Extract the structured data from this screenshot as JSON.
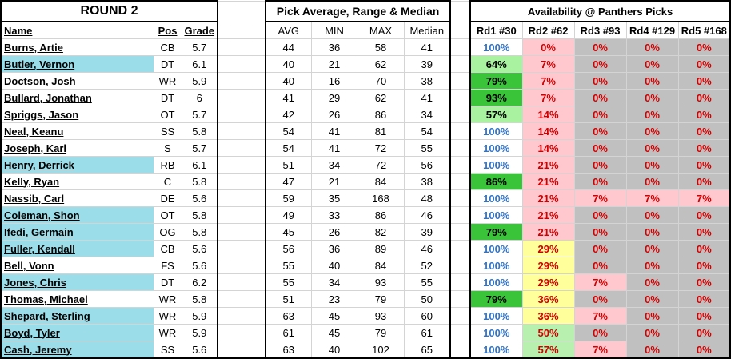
{
  "headers": {
    "section1_title": "ROUND 2",
    "section2_title": "Pick Average, Range & Median",
    "section3_title": "Availability @ Panthers Picks",
    "name": "Name",
    "pos": "Pos",
    "grade": "Grade",
    "avg": "AVG",
    "min": "MIN",
    "max": "MAX",
    "median": "Median",
    "rd1": "Rd1 #30",
    "rd2": "Rd2 #62",
    "rd3": "Rd3 #93",
    "rd4": "Rd4 #129",
    "rd5": "Rd5 #168"
  },
  "colors": {
    "highlight_name": "#9bdde9",
    "pct_100": "#2f74c9",
    "pct_red": "#d00000",
    "dark_green": "#3ac43a",
    "light_green": "#a8f2a0",
    "pink": "#ffc7ce",
    "gray": "#c0c0c0",
    "yellow": "#ffff9c"
  },
  "players": [
    {
      "name": "Burns, Artie",
      "pos": "CB",
      "grade": "5.7",
      "avg": "44",
      "min": "36",
      "max": "58",
      "median": "41",
      "rd1": "100%",
      "rd2": "0%",
      "rd3": "0%",
      "rd4": "0%",
      "rd5": "0%",
      "hl": false,
      "rd1bg": "",
      "rd2bg": "pk",
      "rd3bg": "gy",
      "rd4bg": "gy",
      "rd5bg": "gy"
    },
    {
      "name": "Butler, Vernon",
      "pos": "DT",
      "grade": "6.1",
      "avg": "40",
      "min": "21",
      "max": "62",
      "median": "39",
      "rd1": "64%",
      "rd2": "7%",
      "rd3": "0%",
      "rd4": "0%",
      "rd5": "0%",
      "hl": true,
      "rd1bg": "lg",
      "rd2bg": "pk",
      "rd3bg": "gy",
      "rd4bg": "gy",
      "rd5bg": "gy"
    },
    {
      "name": "Doctson, Josh",
      "pos": "WR",
      "grade": "5.9",
      "avg": "40",
      "min": "16",
      "max": "70",
      "median": "38",
      "rd1": "79%",
      "rd2": "7%",
      "rd3": "0%",
      "rd4": "0%",
      "rd5": "0%",
      "hl": false,
      "rd1bg": "dg",
      "rd2bg": "pk",
      "rd3bg": "gy",
      "rd4bg": "gy",
      "rd5bg": "gy"
    },
    {
      "name": "Bullard, Jonathan",
      "pos": "DT",
      "grade": "6",
      "avg": "41",
      "min": "29",
      "max": "62",
      "median": "41",
      "rd1": "93%",
      "rd2": "7%",
      "rd3": "0%",
      "rd4": "0%",
      "rd5": "0%",
      "hl": false,
      "rd1bg": "dg",
      "rd2bg": "pk",
      "rd3bg": "gy",
      "rd4bg": "gy",
      "rd5bg": "gy"
    },
    {
      "name": "Spriggs, Jason",
      "pos": "OT",
      "grade": "5.7",
      "avg": "42",
      "min": "26",
      "max": "86",
      "median": "34",
      "rd1": "57%",
      "rd2": "14%",
      "rd3": "0%",
      "rd4": "0%",
      "rd5": "0%",
      "hl": false,
      "rd1bg": "lg",
      "rd2bg": "pk",
      "rd3bg": "gy",
      "rd4bg": "gy",
      "rd5bg": "gy"
    },
    {
      "name": "Neal, Keanu",
      "pos": "SS",
      "grade": "5.8",
      "avg": "54",
      "min": "41",
      "max": "81",
      "median": "54",
      "rd1": "100%",
      "rd2": "14%",
      "rd3": "0%",
      "rd4": "0%",
      "rd5": "0%",
      "hl": false,
      "rd1bg": "",
      "rd2bg": "pk",
      "rd3bg": "gy",
      "rd4bg": "gy",
      "rd5bg": "gy"
    },
    {
      "name": "Joseph, Karl",
      "pos": "S",
      "grade": "5.7",
      "avg": "54",
      "min": "41",
      "max": "72",
      "median": "55",
      "rd1": "100%",
      "rd2": "14%",
      "rd3": "0%",
      "rd4": "0%",
      "rd5": "0%",
      "hl": false,
      "rd1bg": "",
      "rd2bg": "pk",
      "rd3bg": "gy",
      "rd4bg": "gy",
      "rd5bg": "gy"
    },
    {
      "name": "Henry, Derrick",
      "pos": "RB",
      "grade": "6.1",
      "avg": "51",
      "min": "34",
      "max": "72",
      "median": "56",
      "rd1": "100%",
      "rd2": "21%",
      "rd3": "0%",
      "rd4": "0%",
      "rd5": "0%",
      "hl": true,
      "rd1bg": "",
      "rd2bg": "pk",
      "rd3bg": "gy",
      "rd4bg": "gy",
      "rd5bg": "gy"
    },
    {
      "name": "Kelly, Ryan",
      "pos": "C",
      "grade": "5.8",
      "avg": "47",
      "min": "21",
      "max": "84",
      "median": "38",
      "rd1": "86%",
      "rd2": "21%",
      "rd3": "0%",
      "rd4": "0%",
      "rd5": "0%",
      "hl": false,
      "rd1bg": "dg",
      "rd2bg": "pk",
      "rd3bg": "gy",
      "rd4bg": "gy",
      "rd5bg": "gy"
    },
    {
      "name": "Nassib, Carl",
      "pos": "DE",
      "grade": "5.6",
      "avg": "59",
      "min": "35",
      "max": "168",
      "median": "48",
      "rd1": "100%",
      "rd2": "21%",
      "rd3": "7%",
      "rd4": "7%",
      "rd5": "7%",
      "hl": false,
      "rd1bg": "",
      "rd2bg": "pk",
      "rd3bg": "pk",
      "rd4bg": "pk",
      "rd5bg": "pk"
    },
    {
      "name": "Coleman, Shon",
      "pos": "OT",
      "grade": "5.8",
      "avg": "49",
      "min": "33",
      "max": "86",
      "median": "46",
      "rd1": "100%",
      "rd2": "21%",
      "rd3": "0%",
      "rd4": "0%",
      "rd5": "0%",
      "hl": true,
      "rd1bg": "",
      "rd2bg": "pk",
      "rd3bg": "gy",
      "rd4bg": "gy",
      "rd5bg": "gy"
    },
    {
      "name": "Ifedi, Germain",
      "pos": "OG",
      "grade": "5.8",
      "avg": "45",
      "min": "26",
      "max": "82",
      "median": "39",
      "rd1": "79%",
      "rd2": "21%",
      "rd3": "0%",
      "rd4": "0%",
      "rd5": "0%",
      "hl": true,
      "rd1bg": "dg",
      "rd2bg": "pk",
      "rd3bg": "gy",
      "rd4bg": "gy",
      "rd5bg": "gy"
    },
    {
      "name": "Fuller, Kendall",
      "pos": "CB",
      "grade": "5.6",
      "avg": "56",
      "min": "36",
      "max": "89",
      "median": "46",
      "rd1": "100%",
      "rd2": "29%",
      "rd3": "0%",
      "rd4": "0%",
      "rd5": "0%",
      "hl": true,
      "rd1bg": "",
      "rd2bg": "yl",
      "rd3bg": "gy",
      "rd4bg": "gy",
      "rd5bg": "gy"
    },
    {
      "name": "Bell, Vonn",
      "pos": "FS",
      "grade": "5.6",
      "avg": "55",
      "min": "40",
      "max": "84",
      "median": "52",
      "rd1": "100%",
      "rd2": "29%",
      "rd3": "0%",
      "rd4": "0%",
      "rd5": "0%",
      "hl": false,
      "rd1bg": "",
      "rd2bg": "yl",
      "rd3bg": "gy",
      "rd4bg": "gy",
      "rd5bg": "gy"
    },
    {
      "name": "Jones, Chris",
      "pos": "DT",
      "grade": "6.2",
      "avg": "55",
      "min": "34",
      "max": "93",
      "median": "55",
      "rd1": "100%",
      "rd2": "29%",
      "rd3": "7%",
      "rd4": "0%",
      "rd5": "0%",
      "hl": true,
      "rd1bg": "",
      "rd2bg": "yl",
      "rd3bg": "pk",
      "rd4bg": "gy",
      "rd5bg": "gy"
    },
    {
      "name": "Thomas, Michael",
      "pos": "WR",
      "grade": "5.8",
      "avg": "51",
      "min": "23",
      "max": "79",
      "median": "50",
      "rd1": "79%",
      "rd2": "36%",
      "rd3": "0%",
      "rd4": "0%",
      "rd5": "0%",
      "hl": false,
      "rd1bg": "dg",
      "rd2bg": "yl",
      "rd3bg": "gy",
      "rd4bg": "gy",
      "rd5bg": "gy"
    },
    {
      "name": "Shepard, Sterling",
      "pos": "WR",
      "grade": "5.9",
      "avg": "63",
      "min": "45",
      "max": "93",
      "median": "60",
      "rd1": "100%",
      "rd2": "36%",
      "rd3": "7%",
      "rd4": "0%",
      "rd5": "0%",
      "hl": true,
      "rd1bg": "",
      "rd2bg": "yl",
      "rd3bg": "pk",
      "rd4bg": "gy",
      "rd5bg": "gy"
    },
    {
      "name": "Boyd, Tyler",
      "pos": "WR",
      "grade": "5.9",
      "avg": "61",
      "min": "45",
      "max": "79",
      "median": "61",
      "rd1": "100%",
      "rd2": "50%",
      "rd3": "0%",
      "rd4": "0%",
      "rd5": "0%",
      "hl": true,
      "rd1bg": "",
      "rd2bg": "lg2",
      "rd3bg": "gy",
      "rd4bg": "gy",
      "rd5bg": "gy"
    },
    {
      "name": "Cash, Jeremy",
      "pos": "SS",
      "grade": "5.6",
      "avg": "63",
      "min": "40",
      "max": "102",
      "median": "65",
      "rd1": "100%",
      "rd2": "57%",
      "rd3": "7%",
      "rd4": "0%",
      "rd5": "0%",
      "hl": true,
      "rd1bg": "",
      "rd2bg": "lg2",
      "rd3bg": "pk",
      "rd4bg": "gy",
      "rd5bg": "gy"
    }
  ]
}
